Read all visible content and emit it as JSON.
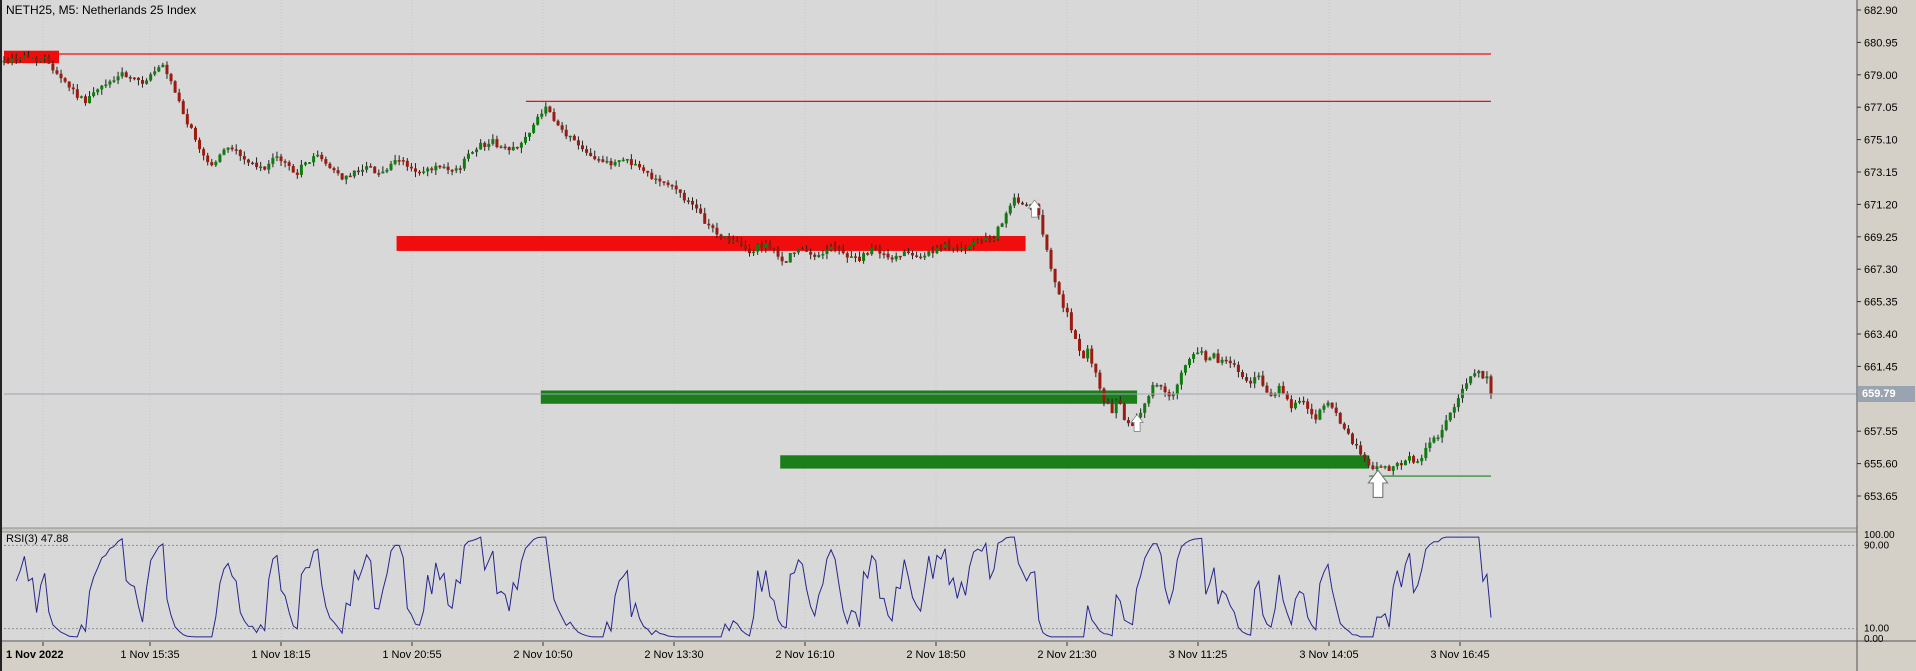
{
  "chart_data": {
    "type": "candlestick_with_rsi",
    "title": "NETH25, M5:  Netherlands 25 Index",
    "symbol": "NETH25",
    "timeframe": "M5",
    "current_price": 659.79,
    "current_price_label": "659.79",
    "price_axis": {
      "step": 1.95,
      "ticks": [
        "682.90",
        "680.95",
        "679.00",
        "677.05",
        "675.10",
        "673.15",
        "671.20",
        "669.25",
        "667.30",
        "665.35",
        "663.40",
        "661.45",
        "659.50",
        "657.55",
        "655.60",
        "653.65"
      ]
    },
    "time_axis": {
      "labels": [
        "1 Nov 2022",
        "1 Nov 15:35",
        "1 Nov 18:15",
        "1 Nov 20:55",
        "2 Nov 10:50",
        "2 Nov 13:30",
        "2 Nov 16:10",
        "2 Nov 18:50",
        "2 Nov 21:30",
        "3 Nov 11:25",
        "3 Nov 14:05",
        "3 Nov 16:45"
      ]
    },
    "price_path_x_span": 1220,
    "price_path": [
      [
        0,
        679.8
      ],
      [
        15,
        680.1
      ],
      [
        35,
        679.9
      ],
      [
        50,
        678.6
      ],
      [
        65,
        677.4
      ],
      [
        80,
        678.2
      ],
      [
        95,
        679.0
      ],
      [
        112,
        678.5
      ],
      [
        130,
        679.5
      ],
      [
        140,
        678.0
      ],
      [
        150,
        676.2
      ],
      [
        160,
        674.6
      ],
      [
        170,
        673.5
      ],
      [
        185,
        674.8
      ],
      [
        197,
        673.9
      ],
      [
        210,
        673.3
      ],
      [
        225,
        674.0
      ],
      [
        240,
        673.1
      ],
      [
        255,
        674.2
      ],
      [
        270,
        673.3
      ],
      [
        280,
        672.7
      ],
      [
        295,
        673.5
      ],
      [
        310,
        673.1
      ],
      [
        325,
        673.9
      ],
      [
        340,
        673.0
      ],
      [
        355,
        673.4
      ],
      [
        370,
        673.1
      ],
      [
        385,
        674.6
      ],
      [
        400,
        675.0
      ],
      [
        415,
        674.4
      ],
      [
        432,
        675.5
      ],
      [
        443,
        677.1
      ],
      [
        455,
        675.8
      ],
      [
        470,
        674.9
      ],
      [
        482,
        674.2
      ],
      [
        495,
        673.6
      ],
      [
        510,
        674.0
      ],
      [
        525,
        673.2
      ],
      [
        540,
        672.6
      ],
      [
        555,
        671.9
      ],
      [
        570,
        670.6
      ],
      [
        585,
        669.4
      ],
      [
        600,
        668.9
      ],
      [
        612,
        668.3
      ],
      [
        625,
        668.9
      ],
      [
        638,
        667.7
      ],
      [
        652,
        668.5
      ],
      [
        665,
        668.0
      ],
      [
        678,
        668.7
      ],
      [
        690,
        668.2
      ],
      [
        702,
        667.9
      ],
      [
        715,
        668.6
      ],
      [
        728,
        667.8
      ],
      [
        740,
        668.5
      ],
      [
        752,
        668.1
      ],
      [
        765,
        668.4
      ],
      [
        778,
        668.8
      ],
      [
        790,
        668.4
      ],
      [
        800,
        669.1
      ],
      [
        812,
        669.0
      ],
      [
        822,
        670.8
      ],
      [
        830,
        671.5
      ],
      [
        840,
        670.9
      ],
      [
        846,
        671.2
      ],
      [
        852,
        669.6
      ],
      [
        858,
        667.8
      ],
      [
        865,
        665.8
      ],
      [
        872,
        664.6
      ],
      [
        878,
        663.2
      ],
      [
        884,
        661.9
      ],
      [
        890,
        662.4
      ],
      [
        896,
        660.9
      ],
      [
        902,
        659.6
      ],
      [
        908,
        658.7
      ],
      [
        914,
        659.4
      ],
      [
        920,
        658.1
      ],
      [
        926,
        657.8
      ],
      [
        932,
        658.6
      ],
      [
        938,
        659.6
      ],
      [
        944,
        660.5
      ],
      [
        950,
        660.1
      ],
      [
        956,
        659.5
      ],
      [
        962,
        660.3
      ],
      [
        968,
        661.2
      ],
      [
        974,
        661.9
      ],
      [
        980,
        662.4
      ],
      [
        986,
        661.9
      ],
      [
        992,
        662.2
      ],
      [
        998,
        661.7
      ],
      [
        1004,
        661.9
      ],
      [
        1010,
        661.4
      ],
      [
        1016,
        660.9
      ],
      [
        1022,
        660.5
      ],
      [
        1028,
        660.9
      ],
      [
        1034,
        660.2
      ],
      [
        1040,
        659.8
      ],
      [
        1046,
        660.1
      ],
      [
        1052,
        659.4
      ],
      [
        1058,
        659.0
      ],
      [
        1064,
        659.4
      ],
      [
        1070,
        658.8
      ],
      [
        1076,
        658.4
      ],
      [
        1082,
        658.9
      ],
      [
        1088,
        659.2
      ],
      [
        1094,
        658.3
      ],
      [
        1100,
        657.5
      ],
      [
        1106,
        656.9
      ],
      [
        1112,
        656.3
      ],
      [
        1118,
        655.7
      ],
      [
        1124,
        655.2
      ],
      [
        1130,
        655.6
      ],
      [
        1136,
        655.0
      ],
      [
        1142,
        655.7
      ],
      [
        1148,
        655.4
      ],
      [
        1154,
        656.0
      ],
      [
        1160,
        655.6
      ],
      [
        1166,
        656.4
      ],
      [
        1172,
        656.9
      ],
      [
        1178,
        657.5
      ],
      [
        1184,
        658.2
      ],
      [
        1190,
        659.0
      ],
      [
        1196,
        659.8
      ],
      [
        1202,
        660.7
      ],
      [
        1208,
        661.3
      ],
      [
        1213,
        660.8
      ],
      [
        1217,
        661.0
      ],
      [
        1220,
        659.8
      ]
    ],
    "zones": [
      {
        "name": "supply-zone-left",
        "kind": "supply",
        "t0": 0.0,
        "t1": 0.037,
        "p0": 679.7,
        "p1": 680.45
      },
      {
        "name": "supply-zone",
        "kind": "supply",
        "t0": 0.264,
        "t1": 0.687,
        "p0": 668.4,
        "p1": 669.3
      },
      {
        "name": "demand-zone-1",
        "kind": "demand",
        "t0": 0.361,
        "t1": 0.762,
        "p0": 659.2,
        "p1": 660.0
      },
      {
        "name": "demand-zone-2",
        "kind": "demand",
        "t0": 0.522,
        "t1": 0.918,
        "p0": 655.3,
        "p1": 656.1
      }
    ],
    "hlines": [
      {
        "name": "resistance-line-1",
        "kind": "resistance",
        "price": 680.25,
        "t0": 0.0,
        "t1": 1.0
      },
      {
        "name": "resistance-line-2",
        "kind": "resistance",
        "price": 677.4,
        "t0": 0.351,
        "t1": 1.0
      },
      {
        "name": "demand-base-line",
        "kind": "demand",
        "price": 654.85,
        "t0": 0.918,
        "t1": 1.0
      }
    ],
    "arrows": [
      {
        "name": "signal-arrow-1",
        "t": 0.693,
        "price": 671.1,
        "dir": "up",
        "size": 1.0
      },
      {
        "name": "signal-arrow-2",
        "t": 0.762,
        "price": 658.2,
        "dir": "up",
        "size": 1.0
      },
      {
        "name": "signal-arrow-3",
        "t": 0.924,
        "price": 654.55,
        "dir": "up",
        "size": 1.6
      }
    ],
    "rsi": {
      "label": "RSI(3) 47.88",
      "period": 3,
      "value": 47.88,
      "range": [
        0,
        100
      ],
      "levels": [
        90,
        10
      ],
      "axis_labels": [
        "100.00",
        "90.00",
        "10.00",
        "0.00"
      ],
      "color": "#26268c"
    },
    "colors": {
      "bull": "#0e7c0e",
      "bear": "#9c1a10",
      "wick": "#222222",
      "supply_zone": "#f00d0d",
      "demand_zone": "#1b7e1b",
      "resistance_line": "#f20d0d",
      "demand_line": "#1b7e1b",
      "price_line": "#9aa4b0",
      "rsi_line": "#26268c",
      "plot_bg": "#d8d8d8",
      "chrome_bg": "#d4d0c8"
    }
  }
}
